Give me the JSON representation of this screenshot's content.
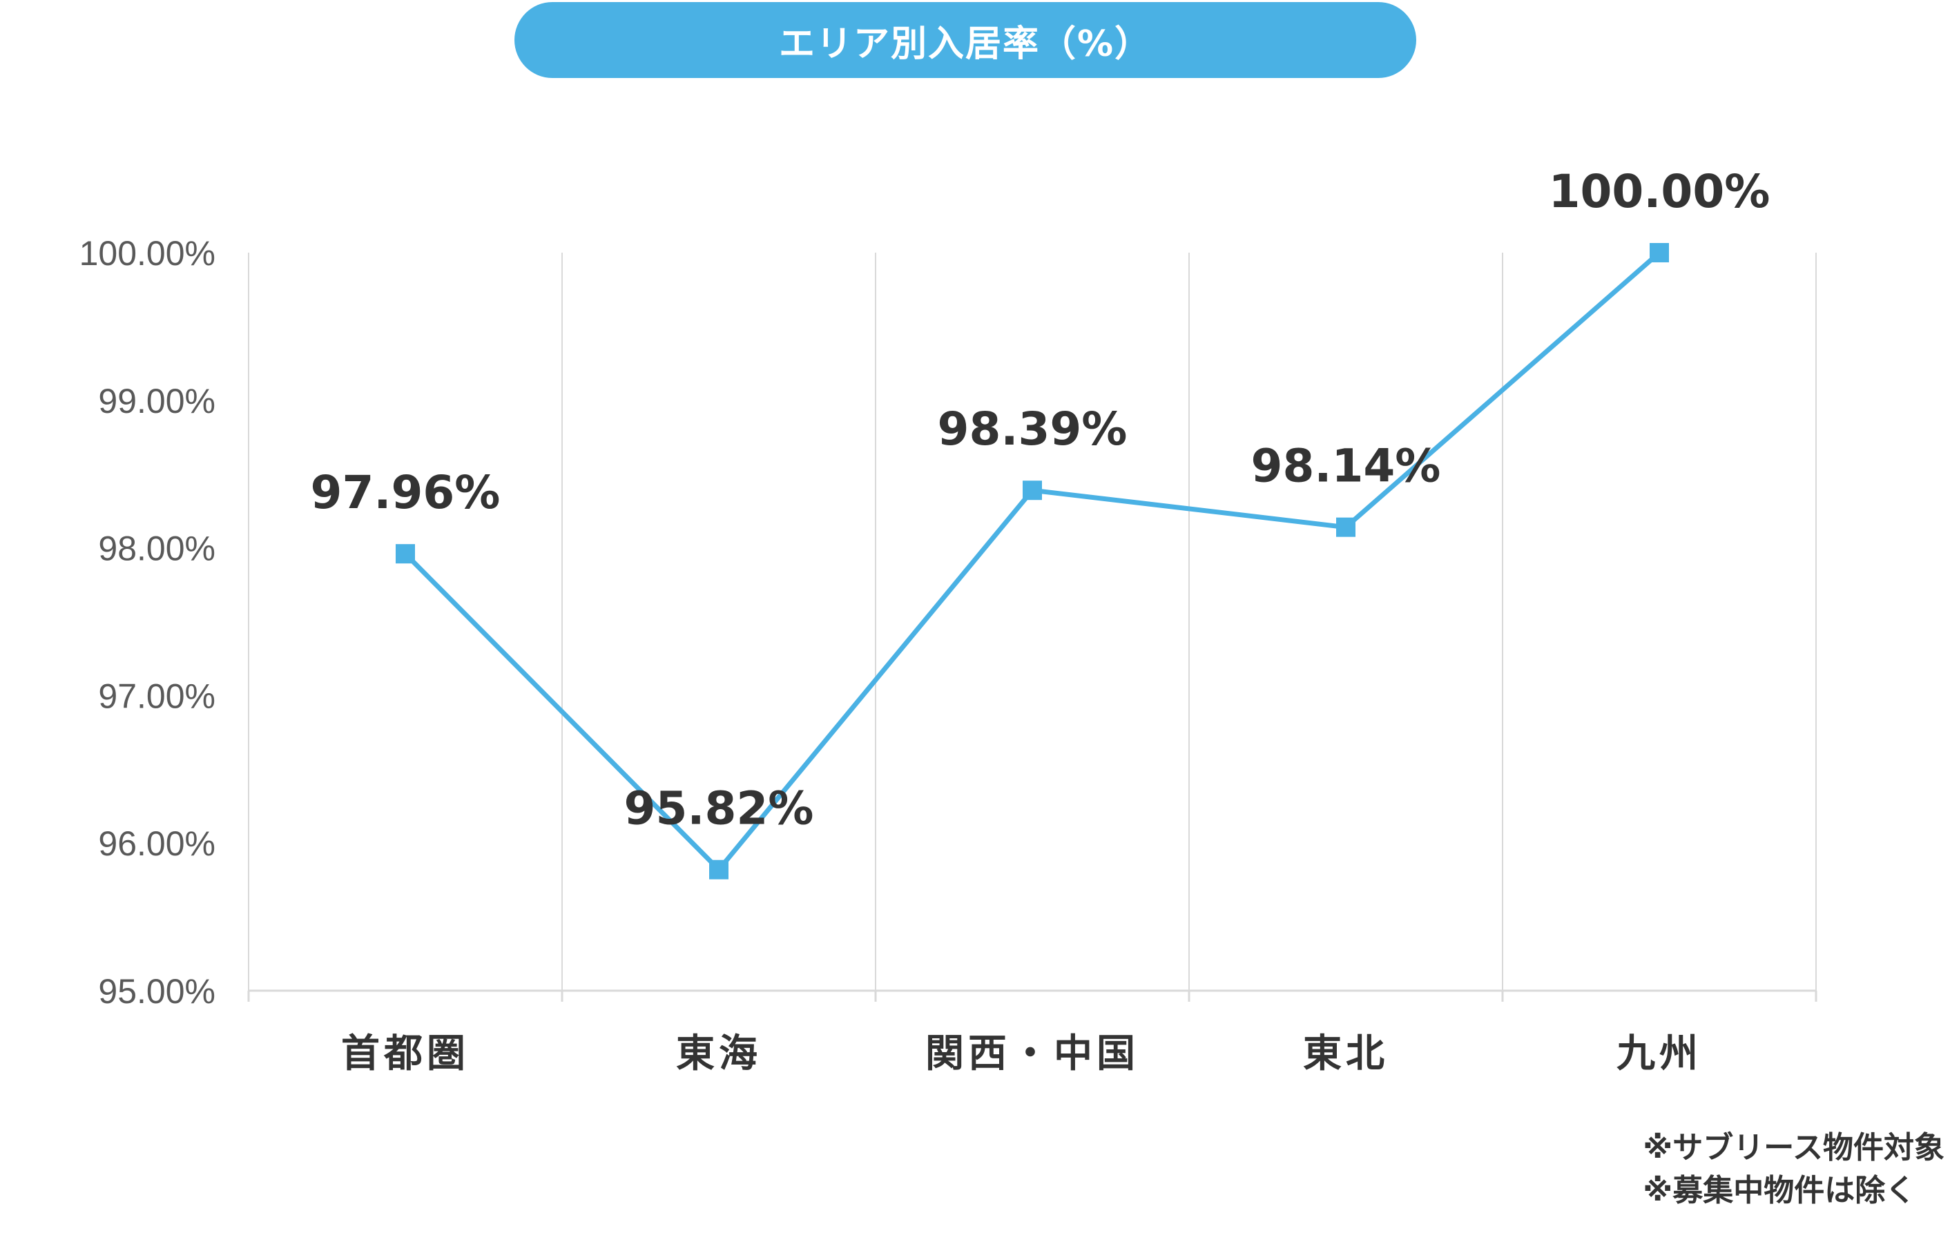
{
  "title": "エリア別入居率（%）",
  "notes": [
    "※サブリース物件対象",
    "※募集中物件は除く"
  ],
  "colors": {
    "line": "#4ab1e4",
    "title_bg": "#4ab1e4",
    "grid": "#d9d9d9",
    "text": "#333333",
    "tick_text": "#595959"
  },
  "chart_data": {
    "type": "line",
    "title": "エリア別入居率（%）",
    "xlabel": "",
    "ylabel": "",
    "categories": [
      "首都圏",
      "東海",
      "関西・中国",
      "東北",
      "九州"
    ],
    "series": [
      {
        "values": [
          97.96,
          95.82,
          98.39,
          98.14,
          100.0
        ],
        "data_labels": [
          "97.96%",
          "95.82%",
          "98.39%",
          "98.14%",
          "100.00%"
        ]
      }
    ],
    "ylim": [
      95,
      100
    ],
    "yticks": [
      95,
      96,
      97,
      98,
      99,
      100
    ],
    "ytick_labels": [
      "95.00%",
      "96.00%",
      "97.00%",
      "98.00%",
      "99.00%",
      "100.00%"
    ],
    "marker": "square",
    "grid": "vertical",
    "legend": "none"
  }
}
